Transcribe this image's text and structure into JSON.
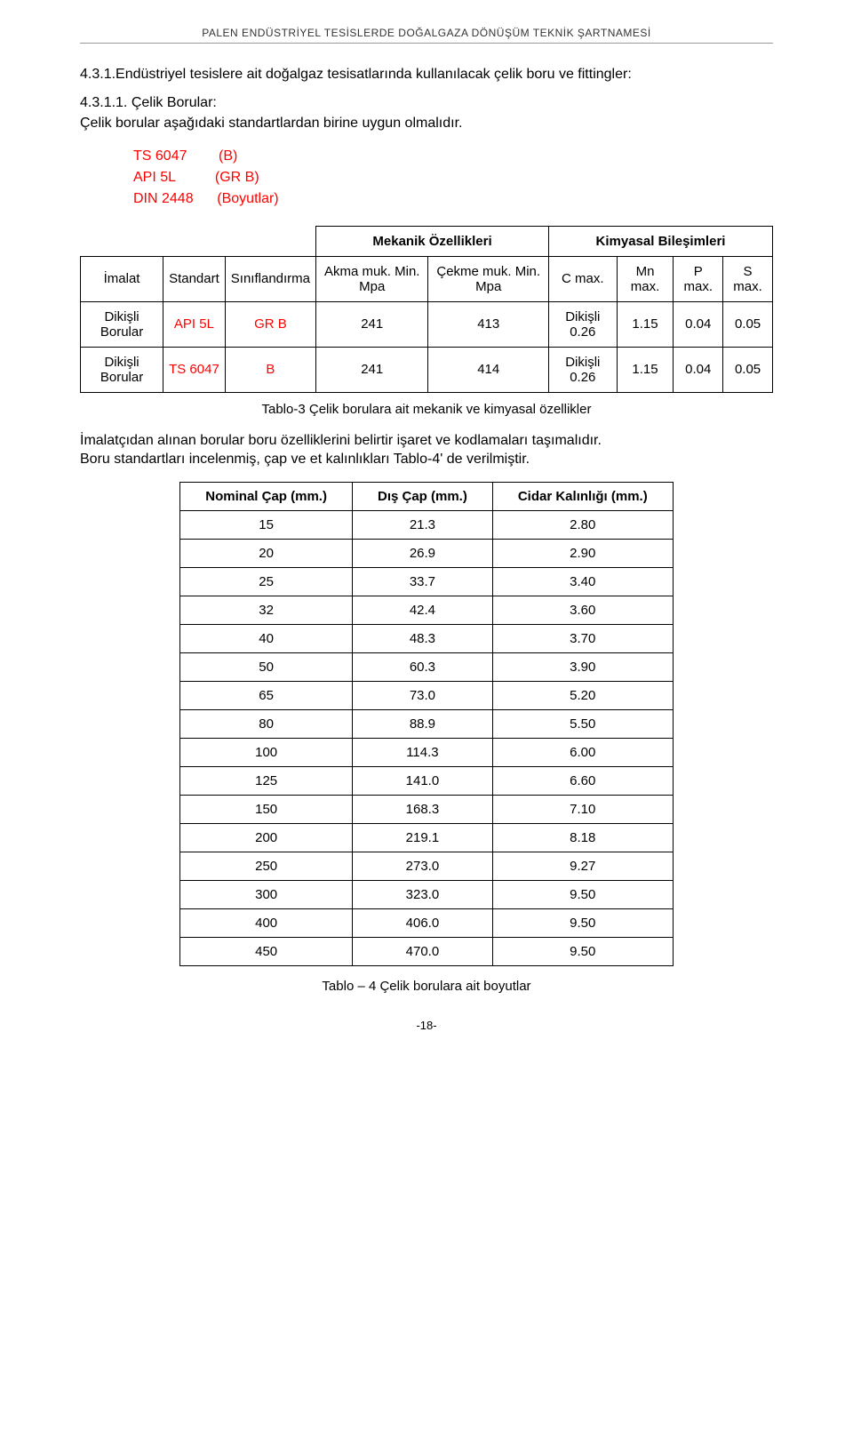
{
  "page_header": "PALEN ENDÜSTRİYEL TESİSLERDE DOĞALGAZA DÖNÜŞÜM TEKNİK ŞARTNAMESİ",
  "section": {
    "number_title": "4.3.1.Endüstriyel tesislere ait doğalgaz tesisatlarında kullanılacak çelik boru ve fittingler:",
    "sub_number_title": "4.3.1.1. Çelik Borular:",
    "intro": "Çelik borular  aşağıdaki standartlardan birine uygun olmalıdır."
  },
  "standards": [
    {
      "name": "TS 6047",
      "note": "(B)"
    },
    {
      "name": "API 5L",
      "note": "(GR B)"
    },
    {
      "name": "DIN 2448",
      "note": "(Boyutlar)"
    }
  ],
  "table1": {
    "headers": {
      "imalat": "İmalat",
      "standart": "Standart",
      "sinif": "Sınıflandırma",
      "mekanik": "Mekanik Özellikleri",
      "kimyasal": "Kimyasal Bileşimleri",
      "akma": "Akma muk. Min. Mpa",
      "cekme": "Çekme muk. Min. Mpa",
      "c": "C max.",
      "mn": "Mn max.",
      "p": "P max.",
      "s": "S max."
    },
    "rows": [
      {
        "imalat": "Dikişli Borular",
        "standart": "API 5L",
        "sinif": "GR B",
        "akma": "241",
        "cekme": "413",
        "c": "Dikişli 0.26",
        "mn": "1.15",
        "p": "0.04",
        "s": "0.05"
      },
      {
        "imalat": "Dikişli Borular",
        "standart": "TS 6047",
        "sinif": "B",
        "akma": "241",
        "cekme": "414",
        "c": "Dikişli 0.26",
        "mn": "1.15",
        "p": "0.04",
        "s": "0.05"
      }
    ],
    "caption": "Tablo-3 Çelik borulara ait mekanik ve kimyasal özellikler"
  },
  "mid_paragraph": [
    "İmalatçıdan alınan borular boru özelliklerini belirtir işaret ve kodlamaları taşımalıdır.",
    "Boru standartları incelenmiş, çap ve et kalınlıkları Tablo-4' de verilmiştir."
  ],
  "table2": {
    "headers": {
      "nominal": "Nominal Çap (mm.)",
      "dis": "Dış Çap (mm.)",
      "cidar": "Cidar Kalınlığı (mm.)"
    },
    "rows": [
      {
        "n": "15",
        "d": "21.3",
        "c": "2.80"
      },
      {
        "n": "20",
        "d": "26.9",
        "c": "2.90"
      },
      {
        "n": "25",
        "d": "33.7",
        "c": "3.40"
      },
      {
        "n": "32",
        "d": "42.4",
        "c": "3.60"
      },
      {
        "n": "40",
        "d": "48.3",
        "c": "3.70"
      },
      {
        "n": "50",
        "d": "60.3",
        "c": "3.90"
      },
      {
        "n": "65",
        "d": "73.0",
        "c": "5.20"
      },
      {
        "n": "80",
        "d": "88.9",
        "c": "5.50"
      },
      {
        "n": "100",
        "d": "114.3",
        "c": "6.00"
      },
      {
        "n": "125",
        "d": "141.0",
        "c": "6.60"
      },
      {
        "n": "150",
        "d": "168.3",
        "c": "7.10"
      },
      {
        "n": "200",
        "d": "219.1",
        "c": "8.18"
      },
      {
        "n": "250",
        "d": "273.0",
        "c": "9.27"
      },
      {
        "n": "300",
        "d": "323.0",
        "c": "9.50"
      },
      {
        "n": "400",
        "d": "406.0",
        "c": "9.50"
      },
      {
        "n": "450",
        "d": "470.0",
        "c": "9.50"
      }
    ],
    "caption": "Tablo – 4 Çelik borulara ait boyutlar"
  },
  "page_number": "-18-",
  "colors": {
    "text": "#000000",
    "accent_red": "#ff0000",
    "rule": "#999999",
    "background": "#ffffff"
  }
}
